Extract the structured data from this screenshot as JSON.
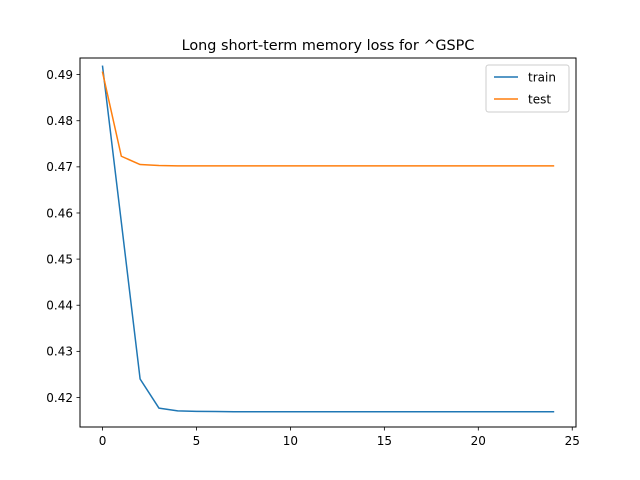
{
  "chart_data": {
    "type": "line",
    "title": "Long short-term memory loss for ^GSPC",
    "xlabel": "",
    "ylabel": "",
    "xlim": [
      -1.2,
      25.2
    ],
    "ylim": [
      0.4136,
      0.4936
    ],
    "x_ticks": [
      0,
      5,
      10,
      15,
      20,
      25
    ],
    "x_tick_labels": [
      "0",
      "5",
      "10",
      "15",
      "20",
      "25"
    ],
    "y_ticks": [
      0.42,
      0.43,
      0.44,
      0.45,
      0.46,
      0.47,
      0.48,
      0.49
    ],
    "y_tick_labels": [
      "0.42",
      "0.43",
      "0.44",
      "0.45",
      "0.46",
      "0.47",
      "0.48",
      "0.49"
    ],
    "grid": false,
    "legend_position": "top-right",
    "x": [
      0,
      1,
      2,
      3,
      4,
      5,
      6,
      7,
      8,
      9,
      10,
      11,
      12,
      13,
      14,
      15,
      16,
      17,
      18,
      19,
      20,
      21,
      22,
      23,
      24
    ],
    "series": [
      {
        "name": "train",
        "color": "#1f77b4",
        "values": [
          0.4918,
          0.458,
          0.424,
          0.4177,
          0.4171,
          0.417,
          0.41695,
          0.4169,
          0.4169,
          0.4169,
          0.4169,
          0.4169,
          0.4169,
          0.4169,
          0.4169,
          0.4169,
          0.4169,
          0.4169,
          0.4169,
          0.4169,
          0.4169,
          0.4169,
          0.4169,
          0.4169,
          0.4169
        ]
      },
      {
        "name": "test",
        "color": "#ff7f0e",
        "values": [
          0.4905,
          0.4723,
          0.4705,
          0.4703,
          0.4702,
          0.4702,
          0.4702,
          0.4702,
          0.4702,
          0.4702,
          0.4702,
          0.4702,
          0.4702,
          0.4702,
          0.4702,
          0.4702,
          0.4702,
          0.4702,
          0.4702,
          0.4702,
          0.4702,
          0.4702,
          0.4702,
          0.4702,
          0.4702
        ]
      }
    ]
  }
}
